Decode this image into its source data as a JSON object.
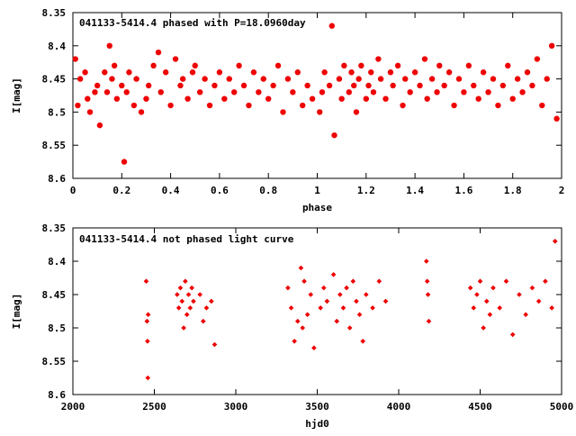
{
  "chart_data": [
    {
      "type": "scatter",
      "title": "041133-5414.4 phased with P=18.0960day",
      "xlabel": "phase",
      "ylabel": "I[mag]",
      "xlim": [
        0,
        2
      ],
      "ylim": [
        8.35,
        8.6
      ],
      "y_inverted": true,
      "grid": false,
      "marker": "filled-circle",
      "color": "#ee0000",
      "x_ticks": [
        "0",
        "0.2",
        "0.4",
        "0.6",
        "0.8",
        "1",
        "1.2",
        "1.4",
        "1.6",
        "1.8",
        "2"
      ],
      "y_ticks": [
        "8.35",
        "8.4",
        "8.45",
        "8.5",
        "8.55",
        "8.6"
      ],
      "x": [
        0.01,
        0.02,
        0.03,
        0.05,
        0.06,
        0.07,
        0.09,
        0.1,
        0.11,
        0.13,
        0.14,
        0.15,
        0.16,
        0.17,
        0.18,
        0.2,
        0.21,
        0.22,
        0.23,
        0.25,
        0.26,
        0.28,
        0.3,
        0.31,
        0.33,
        0.35,
        0.36,
        0.38,
        0.4,
        0.42,
        0.44,
        0.45,
        0.47,
        0.49,
        0.5,
        0.52,
        0.54,
        0.56,
        0.58,
        0.6,
        0.62,
        0.64,
        0.66,
        0.68,
        0.7,
        0.72,
        0.74,
        0.76,
        0.78,
        0.8,
        0.82,
        0.84,
        0.86,
        0.88,
        0.9,
        0.92,
        0.94,
        0.96,
        0.98,
        1.01,
        1.02,
        1.03,
        1.05,
        1.06,
        1.07,
        1.09,
        1.1,
        1.11,
        1.13,
        1.14,
        1.15,
        1.16,
        1.17,
        1.18,
        1.2,
        1.21,
        1.22,
        1.23,
        1.25,
        1.26,
        1.28,
        1.3,
        1.31,
        1.33,
        1.35,
        1.36,
        1.38,
        1.4,
        1.42,
        1.44,
        1.45,
        1.47,
        1.49,
        1.5,
        1.52,
        1.54,
        1.56,
        1.58,
        1.6,
        1.62,
        1.64,
        1.66,
        1.68,
        1.7,
        1.72,
        1.74,
        1.76,
        1.78,
        1.8,
        1.82,
        1.84,
        1.86,
        1.88,
        1.9,
        1.92,
        1.94,
        1.96,
        1.98
      ],
      "y": [
        8.42,
        8.49,
        8.45,
        8.44,
        8.48,
        8.5,
        8.47,
        8.46,
        8.52,
        8.44,
        8.47,
        8.4,
        8.45,
        8.43,
        8.48,
        8.46,
        8.575,
        8.47,
        8.44,
        8.49,
        8.45,
        8.5,
        8.48,
        8.46,
        8.43,
        8.41,
        8.47,
        8.44,
        8.49,
        8.42,
        8.46,
        8.45,
        8.48,
        8.44,
        8.43,
        8.47,
        8.45,
        8.49,
        8.46,
        8.44,
        8.48,
        8.45,
        8.47,
        8.43,
        8.46,
        8.49,
        8.44,
        8.47,
        8.45,
        8.48,
        8.46,
        8.43,
        8.5,
        8.45,
        8.47,
        8.44,
        8.49,
        8.46,
        8.48,
        8.5,
        8.47,
        8.44,
        8.46,
        8.37,
        8.535,
        8.45,
        8.48,
        8.43,
        8.47,
        8.44,
        8.46,
        8.5,
        8.45,
        8.43,
        8.48,
        8.46,
        8.44,
        8.47,
        8.42,
        8.45,
        8.48,
        8.44,
        8.46,
        8.43,
        8.49,
        8.45,
        8.47,
        8.44,
        8.46,
        8.42,
        8.48,
        8.45,
        8.47,
        8.43,
        8.46,
        8.44,
        8.49,
        8.45,
        8.47,
        8.43,
        8.46,
        8.48,
        8.44,
        8.47,
        8.45,
        8.49,
        8.46,
        8.43,
        8.48,
        8.45,
        8.47,
        8.44,
        8.46,
        8.42,
        8.49,
        8.45,
        8.4,
        8.51
      ]
    },
    {
      "type": "scatter",
      "title": "041133-5414.4 not phased light curve",
      "xlabel": "hjd0",
      "ylabel": "I[mag]",
      "xlim": [
        2000,
        5000
      ],
      "ylim": [
        8.35,
        8.6
      ],
      "y_inverted": true,
      "grid": false,
      "marker": "filled-diamond",
      "color": "#ee0000",
      "x_ticks": [
        "2000",
        "2500",
        "3000",
        "3500",
        "4000",
        "4500",
        "5000"
      ],
      "y_ticks": [
        "8.35",
        "8.4",
        "8.45",
        "8.5",
        "8.55",
        "8.6"
      ],
      "x": [
        2450,
        2455,
        2458,
        2460,
        2462,
        2640,
        2650,
        2660,
        2670,
        2680,
        2690,
        2700,
        2710,
        2720,
        2730,
        2740,
        2780,
        2800,
        2820,
        2850,
        2870,
        3320,
        3340,
        3360,
        3380,
        3400,
        3410,
        3420,
        3440,
        3460,
        3480,
        3520,
        3540,
        3560,
        3600,
        3620,
        3640,
        3660,
        3680,
        3700,
        3720,
        3740,
        3760,
        3780,
        3800,
        3840,
        3880,
        3920,
        4170,
        4175,
        4180,
        4185,
        4440,
        4460,
        4480,
        4500,
        4520,
        4540,
        4560,
        4580,
        4620,
        4660,
        4700,
        4740,
        4780,
        4820,
        4860,
        4900,
        4940,
        4960
      ],
      "y": [
        8.43,
        8.49,
        8.52,
        8.575,
        8.48,
        8.45,
        8.47,
        8.44,
        8.46,
        8.5,
        8.43,
        8.48,
        8.45,
        8.47,
        8.44,
        8.46,
        8.45,
        8.49,
        8.47,
        8.46,
        8.525,
        8.44,
        8.47,
        8.52,
        8.49,
        8.41,
        8.5,
        8.43,
        8.48,
        8.45,
        8.53,
        8.47,
        8.44,
        8.46,
        8.42,
        8.49,
        8.45,
        8.47,
        8.44,
        8.5,
        8.43,
        8.46,
        8.48,
        8.52,
        8.45,
        8.47,
        8.43,
        8.46,
        8.4,
        8.43,
        8.45,
        8.49,
        8.44,
        8.47,
        8.45,
        8.43,
        8.5,
        8.46,
        8.48,
        8.44,
        8.47,
        8.43,
        8.51,
        8.45,
        8.48,
        8.44,
        8.46,
        8.43,
        8.47,
        8.37
      ]
    }
  ]
}
